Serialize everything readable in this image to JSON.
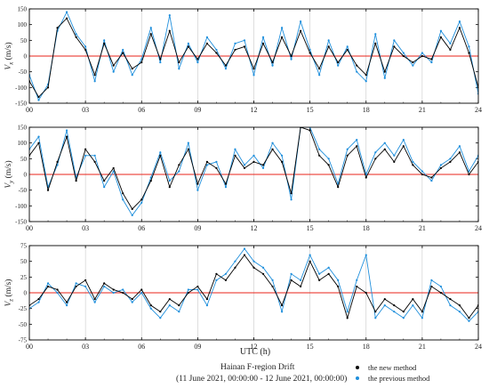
{
  "x_axis_label": "UTC (h)",
  "footer": {
    "title": "Hainan F-region Drift",
    "range": "(11 June 2021, 00:00:00 - 12 June 2021, 00:00:00)"
  },
  "legend": [
    {
      "label": "the new method",
      "color": "#000000"
    },
    {
      "label": "the previous method",
      "color": "#1f8fdc"
    }
  ],
  "colors": {
    "zero_line": "#e8231a",
    "grid": "#c8c8c8"
  },
  "chart_data": [
    {
      "type": "line",
      "ylabel_main": "V",
      "ylabel_sub": "x",
      "ylabel_unit": " (m/s)",
      "xlim": [
        0,
        24
      ],
      "ylim": [
        -150,
        150
      ],
      "x_ticks": [
        "00",
        "03",
        "06",
        "09",
        "12",
        "15",
        "18",
        "21",
        "24"
      ],
      "y_ticks": [
        "150",
        "100",
        "50",
        "0",
        "-50",
        "-100",
        "-150"
      ],
      "x": [
        0,
        0.5,
        1,
        1.5,
        2,
        2.5,
        3,
        3.5,
        4,
        4.5,
        5,
        5.5,
        6,
        6.5,
        7,
        7.5,
        8,
        8.5,
        9,
        9.5,
        10,
        10.5,
        11,
        11.5,
        12,
        12.5,
        13,
        13.5,
        14,
        14.5,
        15,
        15.5,
        16,
        16.5,
        17,
        17.5,
        18,
        18.5,
        19,
        19.5,
        20,
        20.5,
        21,
        21.5,
        22,
        22.5,
        23,
        23.5,
        24
      ],
      "series": [
        {
          "name": "the new method",
          "color": "#000000",
          "values": [
            -80,
            -130,
            -100,
            90,
            120,
            60,
            20,
            -60,
            40,
            -30,
            10,
            -40,
            -20,
            70,
            -10,
            80,
            -20,
            30,
            -10,
            40,
            10,
            -30,
            20,
            30,
            -40,
            40,
            -20,
            60,
            0,
            80,
            10,
            -40,
            30,
            -20,
            20,
            -30,
            -60,
            40,
            -50,
            30,
            0,
            -20,
            0,
            -10,
            60,
            20,
            90,
            10,
            -100
          ]
        },
        {
          "name": "the previous method",
          "color": "#1f8fdc",
          "values": [
            -60,
            -140,
            -90,
            80,
            140,
            70,
            30,
            -80,
            50,
            -50,
            20,
            -60,
            -10,
            90,
            -20,
            130,
            -40,
            40,
            -20,
            60,
            20,
            -40,
            40,
            50,
            -60,
            60,
            -30,
            90,
            -10,
            110,
            20,
            -60,
            50,
            -30,
            30,
            -50,
            -80,
            70,
            -70,
            50,
            10,
            -30,
            10,
            -20,
            80,
            40,
            110,
            30,
            -120
          ]
        }
      ]
    },
    {
      "type": "line",
      "ylabel_main": "V",
      "ylabel_sub": "y",
      "ylabel_unit": " (m/s)",
      "xlim": [
        0,
        24
      ],
      "ylim": [
        -150,
        150
      ],
      "x_ticks": [
        "00",
        "03",
        "06",
        "09",
        "12",
        "15",
        "18",
        "21",
        "24"
      ],
      "y_ticks": [
        "150",
        "100",
        "50",
        "0",
        "-50",
        "-100",
        "-150"
      ],
      "x": [
        0,
        0.5,
        1,
        1.5,
        2,
        2.5,
        3,
        3.5,
        4,
        4.5,
        5,
        5.5,
        6,
        6.5,
        7,
        7.5,
        8,
        8.5,
        9,
        9.5,
        10,
        10.5,
        11,
        11.5,
        12,
        12.5,
        13,
        13.5,
        14,
        14.5,
        15,
        15.5,
        16,
        16.5,
        17,
        17.5,
        18,
        18.5,
        19,
        19.5,
        20,
        20.5,
        21,
        21.5,
        22,
        22.5,
        23,
        23.5,
        24
      ],
      "series": [
        {
          "name": "the new method",
          "color": "#000000",
          "values": [
            60,
            100,
            -50,
            40,
            120,
            -20,
            80,
            40,
            -20,
            20,
            -60,
            -110,
            -80,
            -20,
            60,
            -40,
            30,
            80,
            -30,
            40,
            20,
            -30,
            60,
            20,
            40,
            30,
            80,
            40,
            -60,
            150,
            140,
            60,
            30,
            -40,
            60,
            90,
            -10,
            50,
            80,
            40,
            90,
            30,
            0,
            -10,
            20,
            40,
            70,
            0,
            40
          ]
        },
        {
          "name": "the previous method",
          "color": "#1f8fdc",
          "values": [
            80,
            120,
            -40,
            30,
            140,
            -10,
            60,
            60,
            -40,
            10,
            -80,
            -130,
            -90,
            -10,
            70,
            -20,
            10,
            100,
            -50,
            30,
            40,
            -40,
            80,
            30,
            60,
            20,
            100,
            60,
            -80,
            150,
            150,
            80,
            50,
            -30,
            80,
            110,
            0,
            70,
            100,
            60,
            110,
            40,
            10,
            -20,
            30,
            50,
            90,
            10,
            60
          ]
        }
      ]
    },
    {
      "type": "line",
      "ylabel_main": "V",
      "ylabel_sub": "z",
      "ylabel_unit": " (m/s)",
      "xlim": [
        0,
        24
      ],
      "ylim": [
        -75,
        75
      ],
      "x_ticks": [
        "00",
        "03",
        "06",
        "09",
        "12",
        "15",
        "18",
        "21",
        "24"
      ],
      "y_ticks": [
        "75",
        "50",
        "25",
        "0",
        "-25",
        "-50",
        "-75"
      ],
      "x": [
        0,
        0.5,
        1,
        1.5,
        2,
        2.5,
        3,
        3.5,
        4,
        4.5,
        5,
        5.5,
        6,
        6.5,
        7,
        7.5,
        8,
        8.5,
        9,
        9.5,
        10,
        10.5,
        11,
        11.5,
        12,
        12.5,
        13,
        13.5,
        14,
        14.5,
        15,
        15.5,
        16,
        16.5,
        17,
        17.5,
        18,
        18.5,
        19,
        19.5,
        20,
        20.5,
        21,
        21.5,
        22,
        22.5,
        23,
        23.5,
        24
      ],
      "series": [
        {
          "name": "the new method",
          "color": "#000000",
          "values": [
            -20,
            -10,
            10,
            5,
            -15,
            10,
            20,
            -10,
            15,
            5,
            0,
            -10,
            5,
            -20,
            -30,
            -10,
            -20,
            0,
            10,
            -10,
            30,
            20,
            40,
            60,
            40,
            30,
            10,
            -20,
            20,
            10,
            50,
            20,
            30,
            10,
            -40,
            10,
            0,
            -30,
            -10,
            -20,
            -30,
            -10,
            -30,
            10,
            0,
            -10,
            -20,
            -40,
            -20
          ]
        },
        {
          "name": "the previous method",
          "color": "#1f8fdc",
          "values": [
            -25,
            -15,
            15,
            0,
            -20,
            15,
            10,
            -15,
            10,
            0,
            5,
            -15,
            0,
            -25,
            -40,
            -20,
            -30,
            5,
            5,
            -20,
            20,
            30,
            50,
            70,
            50,
            40,
            20,
            -30,
            30,
            20,
            60,
            30,
            40,
            20,
            -30,
            20,
            60,
            -40,
            -20,
            -30,
            -40,
            -20,
            -40,
            20,
            10,
            -20,
            -30,
            -45,
            -30
          ]
        }
      ]
    }
  ]
}
